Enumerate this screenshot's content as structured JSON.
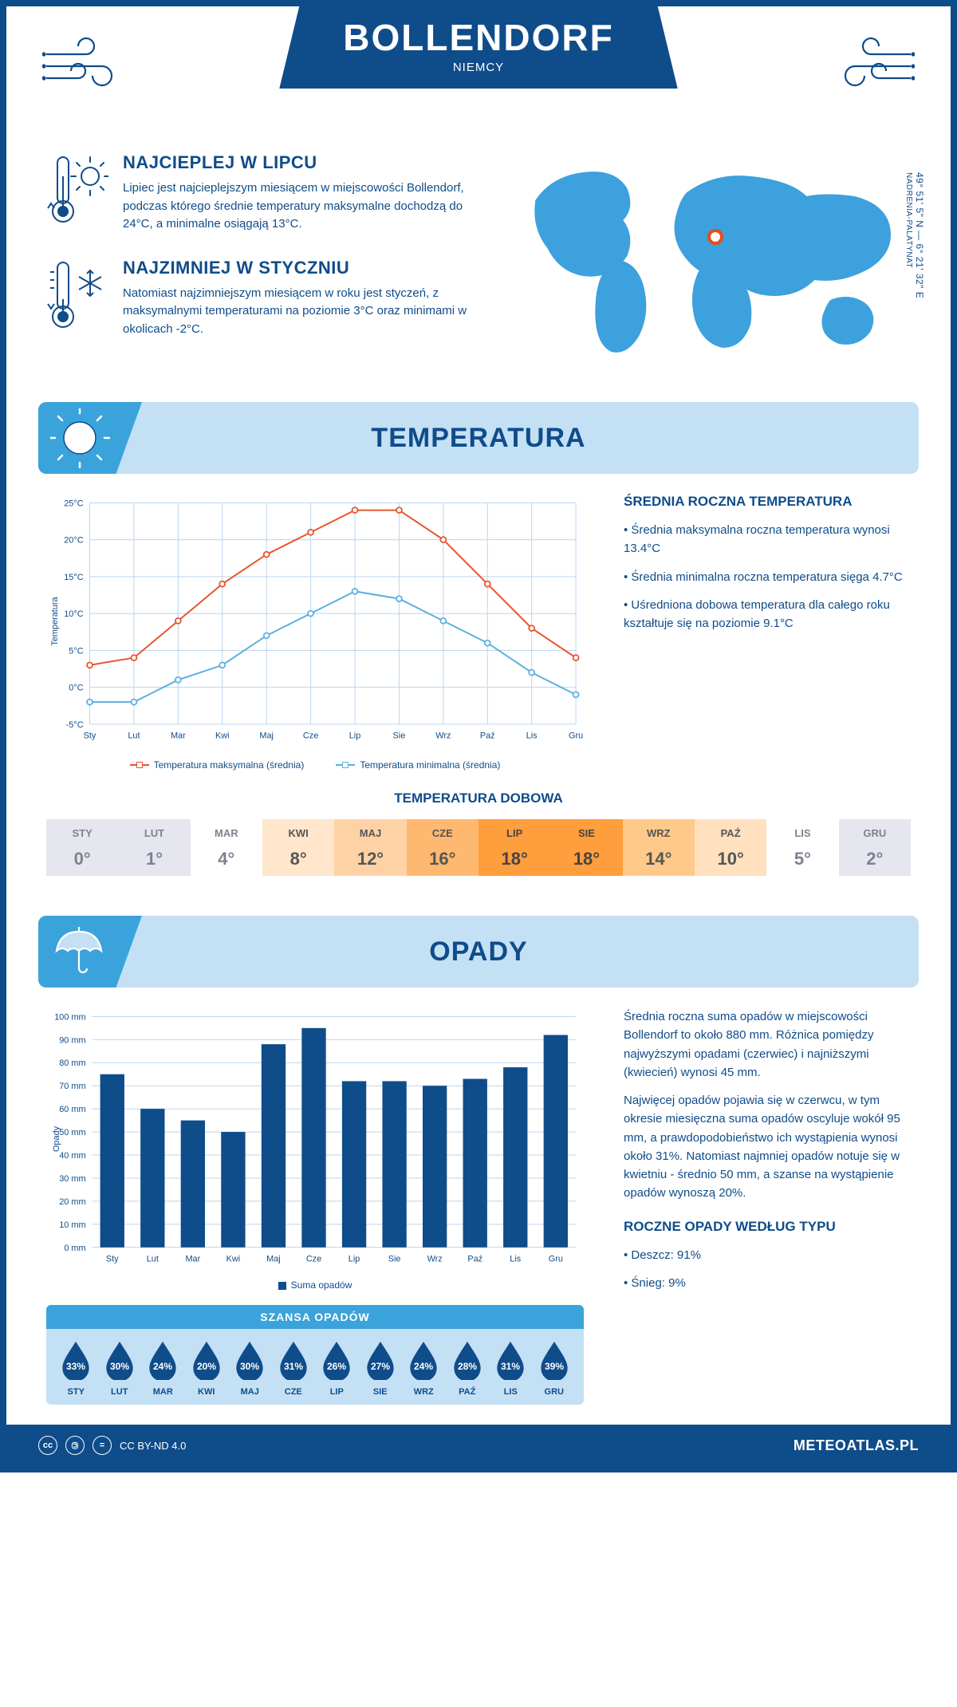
{
  "header": {
    "city": "BOLLENDORF",
    "country": "NIEMCY"
  },
  "coords": {
    "lat": "49° 51' 5\" N — 6° 21' 32\" E",
    "region": "NADRENIA-PALATYNAT"
  },
  "marker": {
    "left_pct": 49,
    "top_pct": 37
  },
  "warm": {
    "title": "NAJCIEPLEJ W LIPCU",
    "text": "Lipiec jest najcieplejszym miesiącem w miejscowości Bollendorf, podczas którego średnie temperatury maksymalne dochodzą do 24°C, a minimalne osiągają 13°C."
  },
  "cold": {
    "title": "NAJZIMNIEJ W STYCZNIU",
    "text": "Natomiast najzimniejszym miesiącem w roku jest styczeń, z maksymalnymi temperaturami na poziomie 3°C oraz minimami w okolicach -2°C."
  },
  "sections": {
    "temperature": "TEMPERATURA",
    "precipitation": "OPADY"
  },
  "months_short": [
    "Sty",
    "Lut",
    "Mar",
    "Kwi",
    "Maj",
    "Cze",
    "Lip",
    "Sie",
    "Wrz",
    "Paź",
    "Lis",
    "Gru"
  ],
  "months_upper": [
    "STY",
    "LUT",
    "MAR",
    "KWI",
    "MAJ",
    "CZE",
    "LIP",
    "SIE",
    "WRZ",
    "PAŹ",
    "LIS",
    "GRU"
  ],
  "temp_chart": {
    "type": "line",
    "y_axis_title": "Temperatura",
    "ylim": [
      -5,
      25
    ],
    "ytick_step": 5,
    "ytick_suffix": "°C",
    "max_series": {
      "label": "Temperatura maksymalna (średnia)",
      "color": "#e8552e",
      "values": [
        3,
        4,
        9,
        14,
        18,
        21,
        24,
        24,
        20,
        14,
        8,
        4
      ]
    },
    "min_series": {
      "label": "Temperatura minimalna (średnia)",
      "color": "#5bb0e2",
      "values": [
        -2,
        -2,
        1,
        3,
        7,
        10,
        13,
        12,
        9,
        6,
        2,
        -1
      ]
    },
    "grid_color": "#bcd4eb",
    "background": "#ffffff"
  },
  "temp_info": {
    "title": "ŚREDNIA ROCZNA TEMPERATURA",
    "b1": "• Średnia maksymalna roczna temperatura wynosi 13.4°C",
    "b2": "• Średnia minimalna roczna temperatura sięga 4.7°C",
    "b3": "• Uśredniona dobowa temperatura dla całego roku kształtuje się na poziomie 9.1°C"
  },
  "daily": {
    "title": "TEMPERATURA DOBOWA",
    "values": [
      0,
      1,
      4,
      8,
      12,
      16,
      18,
      18,
      14,
      10,
      5,
      2
    ],
    "bg_colors": [
      "#e6e6ef",
      "#e6e6ef",
      "#ffffff",
      "#ffe6cc",
      "#ffd2a6",
      "#ffb870",
      "#ff9e3d",
      "#ff9e3d",
      "#ffc98a",
      "#ffe0bf",
      "#ffffff",
      "#e6e6ef"
    ],
    "text_colors": [
      "#808090",
      "#808090",
      "#808090",
      "#555",
      "#555",
      "#555",
      "#444",
      "#444",
      "#555",
      "#555",
      "#808090",
      "#808090"
    ]
  },
  "precip_chart": {
    "type": "bar",
    "y_axis_title": "Opady",
    "ylim": [
      0,
      100
    ],
    "ytick_step": 10,
    "ytick_suffix": " mm",
    "bar_color": "#0f4c8a",
    "grid_color": "#bcd4eb",
    "values": [
      75,
      60,
      55,
      50,
      88,
      95,
      72,
      72,
      70,
      73,
      78,
      92
    ],
    "legend": "Suma opadów"
  },
  "precip_info": {
    "p1": "Średnia roczna suma opadów w miejscowości Bollendorf to około 880 mm. Różnica pomiędzy najwyższymi opadami (czerwiec) i najniższymi (kwiecień) wynosi 45 mm.",
    "p2": "Najwięcej opadów pojawia się w czerwcu, w tym okresie miesięczna suma opadów oscyluje wokół 95 mm, a prawdopodobieństwo ich wystąpienia wynosi około 31%. Natomiast najmniej opadów notuje się w kwietniu - średnio 50 mm, a szanse na wystąpienie opadów wynoszą 20%.",
    "type_title": "ROCZNE OPADY WEDŁUG TYPU",
    "rain": "• Deszcz: 91%",
    "snow": "• Śnieg: 9%"
  },
  "chance": {
    "title": "SZANSA OPADÓW",
    "values": [
      33,
      30,
      24,
      20,
      30,
      31,
      26,
      27,
      24,
      28,
      31,
      39
    ],
    "drop_color": "#0f4c8a",
    "drop_text": "#ffffff"
  },
  "footer": {
    "license": "CC BY-ND 4.0",
    "site": "METEOATLAS.PL"
  }
}
